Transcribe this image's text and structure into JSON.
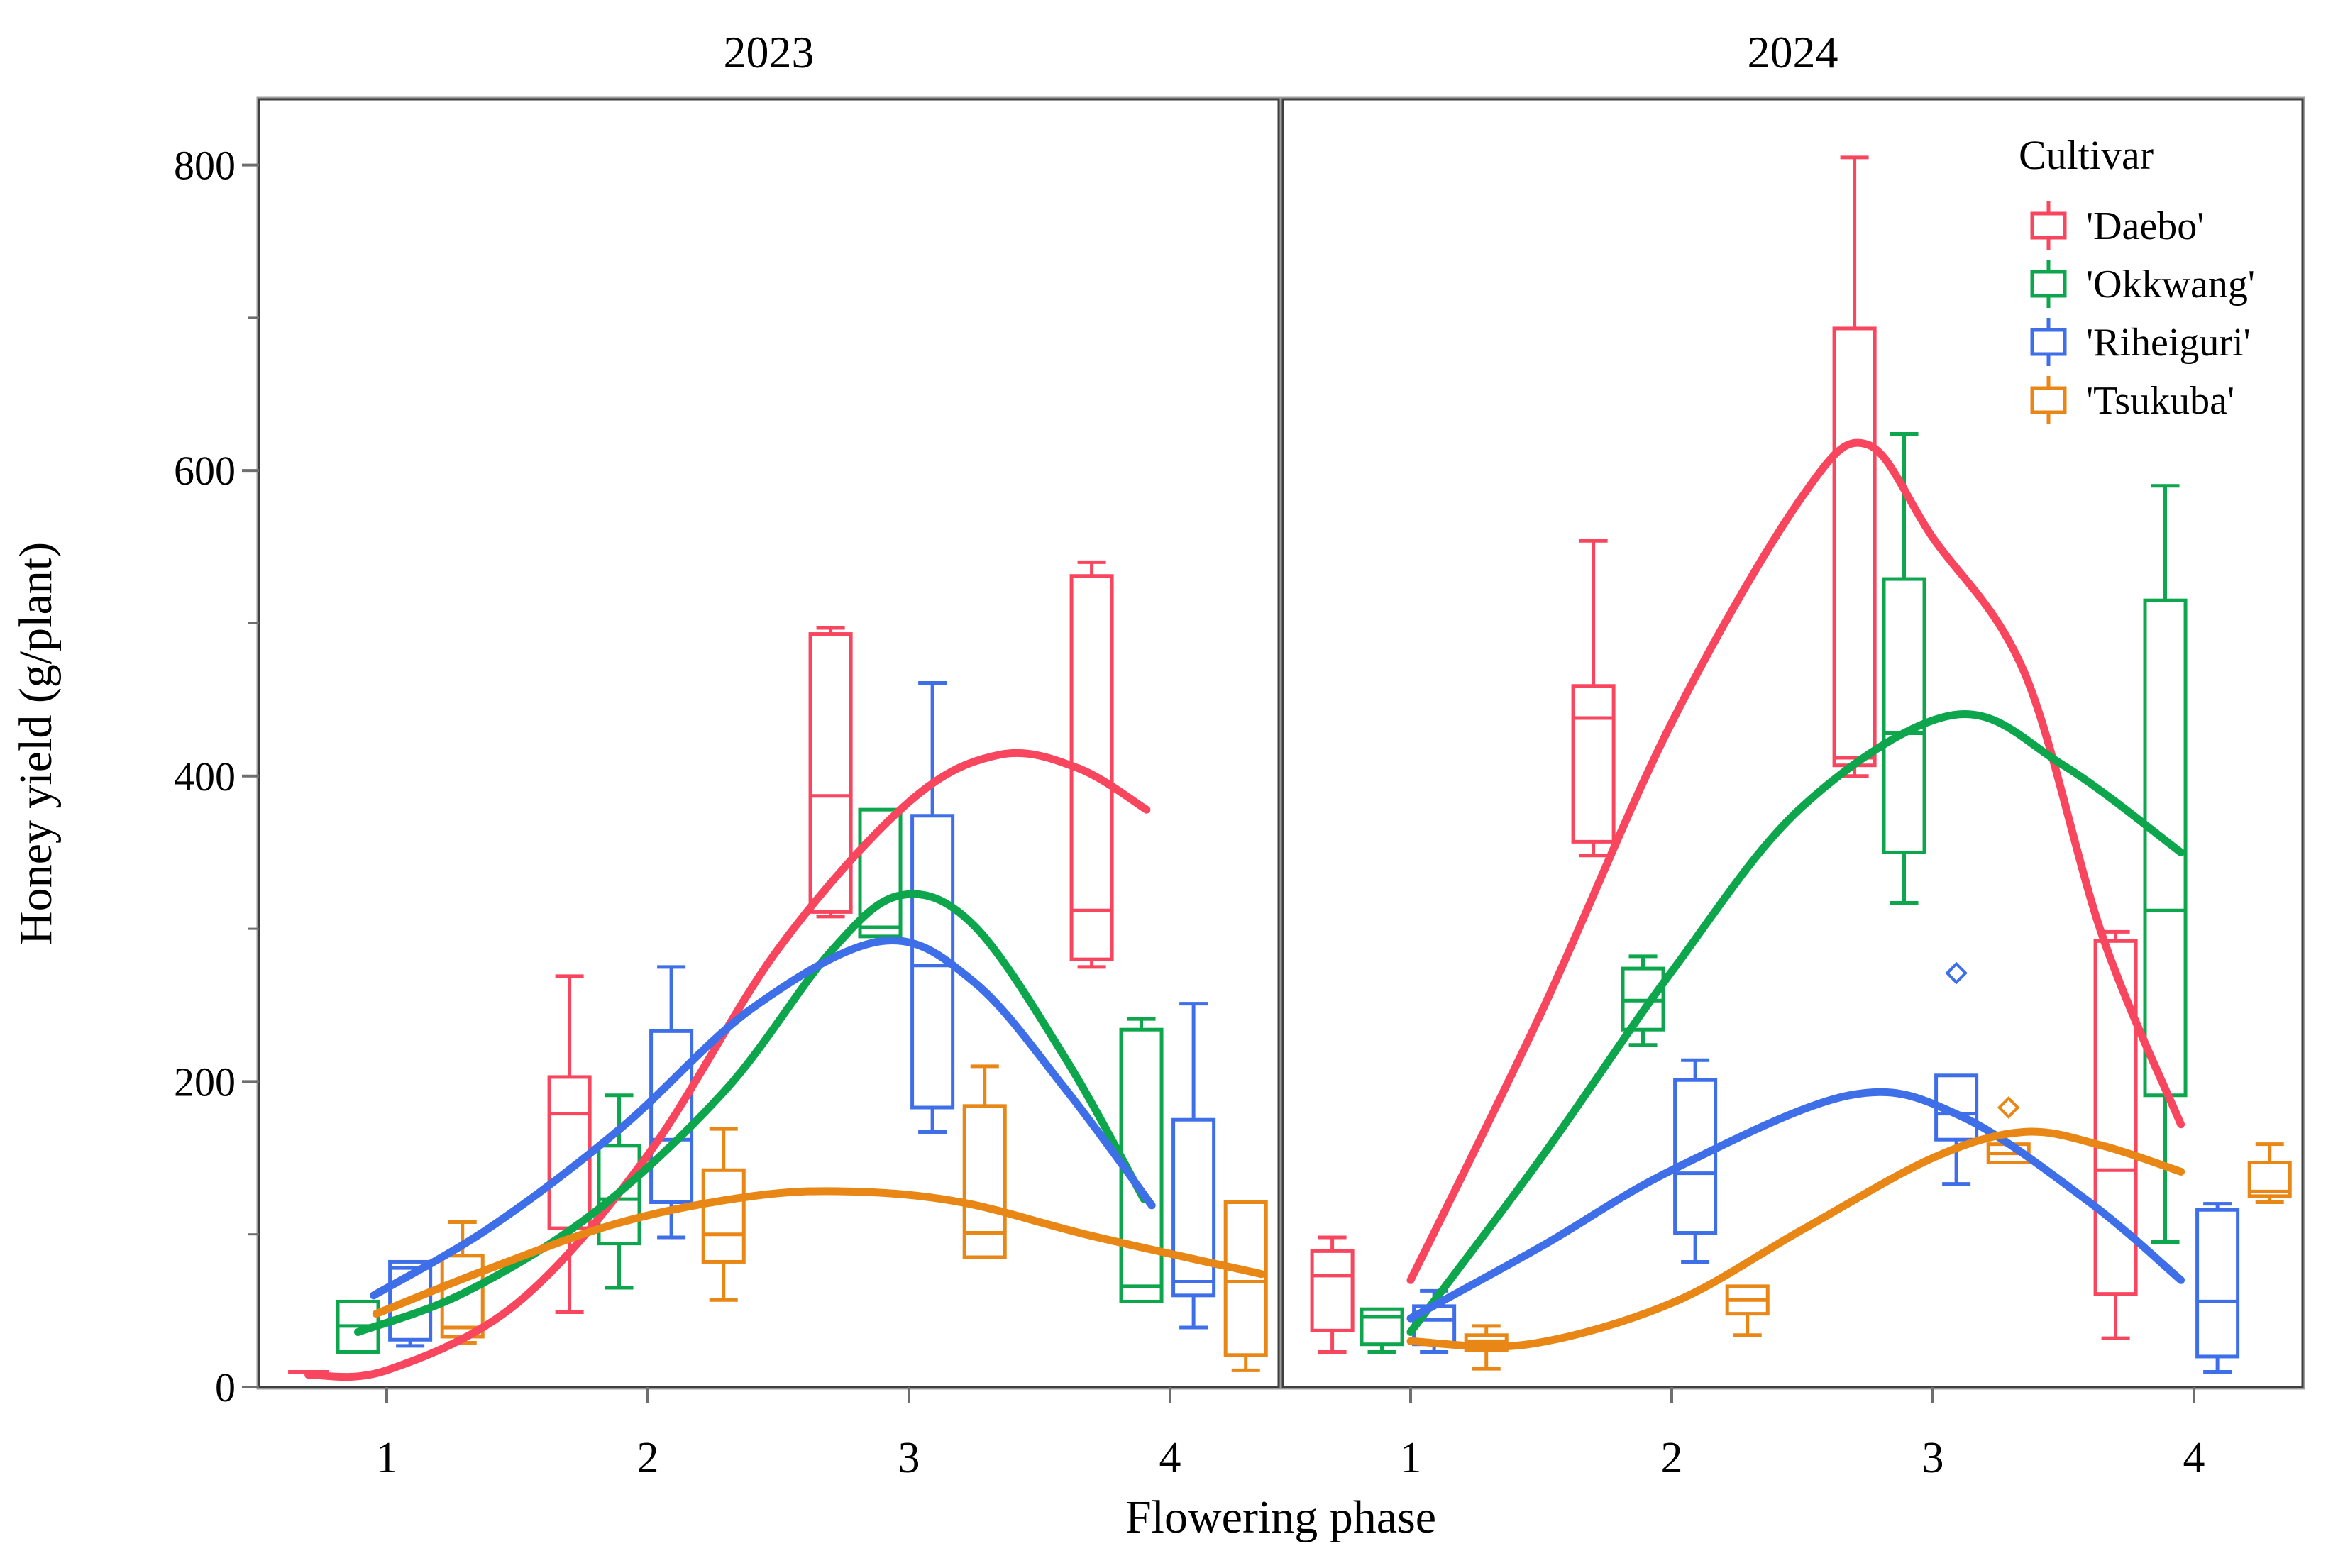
{
  "figure": {
    "facet_titles": [
      "2023",
      "2024"
    ],
    "y_axis": {
      "label": "Honey yield (g/plant)",
      "tick_labels": [
        "0",
        "200",
        "400",
        "600",
        "800"
      ],
      "tick_values": [
        0,
        200,
        400,
        600,
        800
      ],
      "minor_tick_values": [
        100,
        300,
        500,
        700
      ],
      "max": 843
    },
    "x_axis": {
      "label": "Flowering phase",
      "tick_labels": [
        "1",
        "2",
        "3",
        "4"
      ],
      "tick_values": [
        1,
        2,
        3,
        4
      ]
    },
    "legend": {
      "title": "Cultivar",
      "items": [
        {
          "label": "'Daebo'",
          "color": "#F8465F"
        },
        {
          "label": "'Okkwang'",
          "color": "#0DA64D"
        },
        {
          "label": "'Riheiguri'",
          "color": "#3E6FE9"
        },
        {
          "label": "'Tsukuba'",
          "color": "#E88616"
        }
      ]
    }
  },
  "chart_data": {
    "type": "boxplot",
    "title": "Honey yield per flowering phase by cultivar, faceted by year",
    "xlabel": "Flowering phase",
    "ylabel": "Honey yield (g/plant)",
    "ylim": [
      0,
      843
    ],
    "legend_position": "top-right of 2024 panel",
    "grid": false,
    "cultivars": [
      {
        "name": "Daebo",
        "color": "#F8465F",
        "offset": -0.3
      },
      {
        "name": "Okkwang",
        "color": "#0DA64D",
        "offset": -0.11
      },
      {
        "name": "Riheiguri",
        "color": "#3E6FE9",
        "offset": 0.09
      },
      {
        "name": "Tsukuba",
        "color": "#E88616",
        "offset": 0.29
      }
    ],
    "box_width": 0.155,
    "facets": [
      {
        "year": "2023",
        "boxes": [
          {
            "cultivar": "Daebo",
            "phase": 1,
            "low": 10,
            "q1": 10,
            "median": 10,
            "q3": 10,
            "high": 10
          },
          {
            "cultivar": "Okkwang",
            "phase": 1,
            "low": 23,
            "q1": 23,
            "median": 40,
            "q3": 56,
            "high": 56
          },
          {
            "cultivar": "Riheiguri",
            "phase": 1,
            "low": 27,
            "q1": 31,
            "median": 78,
            "q3": 82,
            "high": 82
          },
          {
            "cultivar": "Tsukuba",
            "phase": 1,
            "low": 29,
            "q1": 33,
            "median": 39,
            "q3": 86,
            "high": 108
          },
          {
            "cultivar": "Daebo",
            "phase": 2,
            "low": 49,
            "q1": 104,
            "median": 179,
            "q3": 203,
            "high": 269
          },
          {
            "cultivar": "Okkwang",
            "phase": 2,
            "low": 65,
            "q1": 94,
            "median": 123,
            "q3": 158,
            "high": 191
          },
          {
            "cultivar": "Riheiguri",
            "phase": 2,
            "low": 98,
            "q1": 121,
            "median": 162,
            "q3": 233,
            "high": 275
          },
          {
            "cultivar": "Tsukuba",
            "phase": 2,
            "low": 57,
            "q1": 82,
            "median": 100,
            "q3": 142,
            "high": 169
          },
          {
            "cultivar": "Daebo",
            "phase": 3,
            "low": 308,
            "q1": 311,
            "median": 387,
            "q3": 493,
            "high": 497
          },
          {
            "cultivar": "Okkwang",
            "phase": 3,
            "low": 295,
            "q1": 295,
            "median": 301,
            "q3": 378,
            "high": 378
          },
          {
            "cultivar": "Riheiguri",
            "phase": 3,
            "low": 167,
            "q1": 183,
            "median": 276,
            "q3": 374,
            "high": 461
          },
          {
            "cultivar": "Tsukuba",
            "phase": 3,
            "low": 83,
            "q1": 85,
            "median": 101,
            "q3": 184,
            "high": 210
          },
          {
            "cultivar": "Daebo",
            "phase": 4,
            "low": 275,
            "q1": 280,
            "median": 312,
            "q3": 531,
            "high": 540
          },
          {
            "cultivar": "Okkwang",
            "phase": 4,
            "low": 54,
            "q1": 56,
            "median": 66,
            "q3": 234,
            "high": 241
          },
          {
            "cultivar": "Riheiguri",
            "phase": 4,
            "low": 39,
            "q1": 60,
            "median": 69,
            "q3": 175,
            "high": 251
          },
          {
            "cultivar": "Tsukuba",
            "phase": 4,
            "low": 11,
            "q1": 21,
            "median": 69,
            "q3": 121,
            "high": 121
          }
        ],
        "outliers": [],
        "curves": [
          {
            "cultivar": "Daebo",
            "points": [
              [
                0.7,
                8
              ],
              [
                1.0,
                11
              ],
              [
                1.5,
                55
              ],
              [
                2.0,
                152
              ],
              [
                2.5,
                287
              ],
              [
                3.0,
                383
              ],
              [
                3.35,
                414
              ],
              [
                3.65,
                405
              ],
              [
                3.91,
                378
              ]
            ]
          },
          {
            "cultivar": "Okkwang",
            "points": [
              [
                0.89,
                36
              ],
              [
                1.3,
                62
              ],
              [
                1.8,
                115
              ],
              [
                2.3,
                195
              ],
              [
                2.7,
                285
              ],
              [
                2.97,
                322
              ],
              [
                3.25,
                302
              ],
              [
                3.6,
                215
              ],
              [
                3.9,
                123
              ]
            ]
          },
          {
            "cultivar": "Riheiguri",
            "points": [
              [
                0.95,
                60
              ],
              [
                1.4,
                105
              ],
              [
                1.9,
                170
              ],
              [
                2.4,
                248
              ],
              [
                2.9,
                292
              ],
              [
                3.25,
                265
              ],
              [
                3.6,
                195
              ],
              [
                3.93,
                119
              ]
            ]
          },
          {
            "cultivar": "Tsukuba",
            "points": [
              [
                0.96,
                48
              ],
              [
                1.4,
                78
              ],
              [
                1.9,
                108
              ],
              [
                2.4,
                125
              ],
              [
                2.78,
                128
              ],
              [
                3.2,
                121
              ],
              [
                3.7,
                99
              ],
              [
                4.35,
                74
              ]
            ]
          }
        ]
      },
      {
        "year": "2024",
        "boxes": [
          {
            "cultivar": "Daebo",
            "phase": 1,
            "low": 23,
            "q1": 37,
            "median": 73,
            "q3": 89,
            "high": 98
          },
          {
            "cultivar": "Okkwang",
            "phase": 1,
            "low": 23,
            "q1": 28,
            "median": 46,
            "q3": 51,
            "high": 51
          },
          {
            "cultivar": "Riheiguri",
            "phase": 1,
            "low": 23,
            "q1": 28,
            "median": 44,
            "q3": 53,
            "high": 63
          },
          {
            "cultivar": "Tsukuba",
            "phase": 1,
            "low": 12,
            "q1": 24,
            "median": 30,
            "q3": 34,
            "high": 40
          },
          {
            "cultivar": "Daebo",
            "phase": 2,
            "low": 348,
            "q1": 357,
            "median": 438,
            "q3": 459,
            "high": 554
          },
          {
            "cultivar": "Okkwang",
            "phase": 2,
            "low": 224,
            "q1": 234,
            "median": 253,
            "q3": 274,
            "high": 282
          },
          {
            "cultivar": "Riheiguri",
            "phase": 2,
            "low": 82,
            "q1": 101,
            "median": 140,
            "q3": 201,
            "high": 214
          },
          {
            "cultivar": "Tsukuba",
            "phase": 2,
            "low": 34,
            "q1": 48,
            "median": 57,
            "q3": 66,
            "high": 66
          },
          {
            "cultivar": "Daebo",
            "phase": 3,
            "low": 400,
            "q1": 407,
            "median": 412,
            "q3": 693,
            "high": 805
          },
          {
            "cultivar": "Okkwang",
            "phase": 3,
            "low": 317,
            "q1": 350,
            "median": 428,
            "q3": 529,
            "high": 624
          },
          {
            "cultivar": "Riheiguri",
            "phase": 3,
            "low": 133,
            "q1": 162,
            "median": 179,
            "q3": 204,
            "high": 204
          },
          {
            "cultivar": "Tsukuba",
            "phase": 3,
            "low": 147,
            "q1": 147,
            "median": 153,
            "q3": 159,
            "high": 159
          },
          {
            "cultivar": "Daebo",
            "phase": 4,
            "low": 32,
            "q1": 61,
            "median": 142,
            "q3": 292,
            "high": 298
          },
          {
            "cultivar": "Okkwang",
            "phase": 4,
            "low": 95,
            "q1": 191,
            "median": 312,
            "q3": 515,
            "high": 590
          },
          {
            "cultivar": "Riheiguri",
            "phase": 4,
            "low": 10,
            "q1": 20,
            "median": 56,
            "q3": 116,
            "high": 120
          },
          {
            "cultivar": "Tsukuba",
            "phase": 4,
            "low": 121,
            "q1": 125,
            "median": 128,
            "q3": 147,
            "high": 159
          }
        ],
        "outliers": [
          {
            "cultivar": "Riheiguri",
            "phase": 3,
            "value": 271
          },
          {
            "cultivar": "Tsukuba",
            "phase": 3,
            "value": 183
          }
        ],
        "curves": [
          {
            "cultivar": "Daebo",
            "points": [
              [
                1.0,
                70
              ],
              [
                1.5,
                245
              ],
              [
                2.0,
                435
              ],
              [
                2.5,
                583
              ],
              [
                2.75,
                617
              ],
              [
                3.0,
                556
              ],
              [
                3.35,
                468
              ],
              [
                3.65,
                295
              ],
              [
                3.95,
                172
              ]
            ]
          },
          {
            "cultivar": "Okkwang",
            "points": [
              [
                1.0,
                36
              ],
              [
                1.5,
                150
              ],
              [
                2.0,
                272
              ],
              [
                2.5,
                380
              ],
              [
                3.08,
                440
              ],
              [
                3.5,
                407
              ],
              [
                3.95,
                350
              ]
            ]
          },
          {
            "cultivar": "Riheiguri",
            "points": [
              [
                1.0,
                45
              ],
              [
                1.5,
                92
              ],
              [
                2.0,
                142
              ],
              [
                2.68,
                191
              ],
              [
                3.1,
                178
              ],
              [
                3.6,
                121
              ],
              [
                3.95,
                70
              ]
            ]
          },
          {
            "cultivar": "Tsukuba",
            "points": [
              [
                1.0,
                30
              ],
              [
                1.45,
                28
              ],
              [
                2.0,
                55
              ],
              [
                2.5,
                103
              ],
              [
                3.0,
                150
              ],
              [
                3.35,
                167
              ],
              [
                3.65,
                158
              ],
              [
                3.95,
                141
              ]
            ]
          }
        ]
      }
    ]
  }
}
